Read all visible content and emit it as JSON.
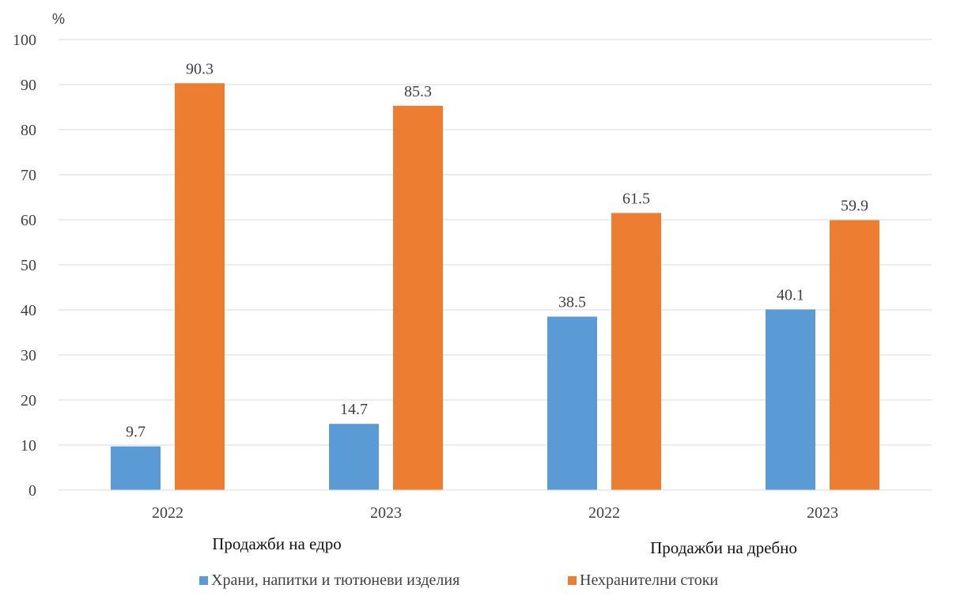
{
  "chart_data": {
    "type": "bar",
    "unit_label": "%",
    "categories": [
      "2022",
      "2023",
      "2022",
      "2023"
    ],
    "groups": [
      {
        "label": "Продажби на едро",
        "categories": [
          "2022",
          "2023"
        ]
      },
      {
        "label": "Продажби на дребно",
        "categories": [
          "2022",
          "2023"
        ]
      }
    ],
    "series": [
      {
        "name": "Храни, напитки и тютюневи изделия",
        "values": [
          9.7,
          14.7,
          38.5,
          40.1
        ],
        "color": "#5b9bd5"
      },
      {
        "name": "Нехранителни стоки",
        "values": [
          90.3,
          85.3,
          61.5,
          59.9
        ],
        "color": "#ed7d31"
      }
    ],
    "yticks": [
      0,
      10,
      20,
      30,
      40,
      50,
      60,
      70,
      80,
      90,
      100
    ],
    "ylim": [
      0,
      100
    ],
    "grid": true,
    "legend_position": "bottom"
  }
}
